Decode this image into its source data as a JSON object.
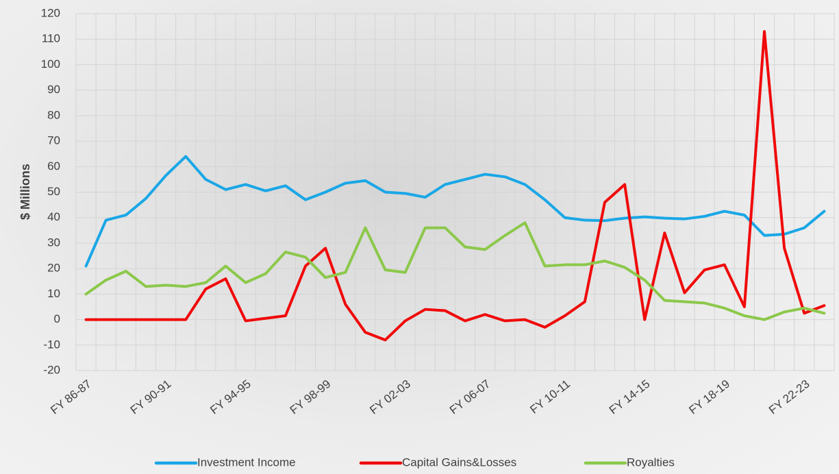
{
  "chart_data": {
    "type": "line",
    "y_label": "$ Millions",
    "categories": [
      "FY 86-87",
      null,
      null,
      null,
      "FY 90-91",
      null,
      null,
      null,
      "FY 94-95",
      null,
      null,
      null,
      "FY 98-99",
      null,
      null,
      null,
      "FY 02-03",
      null,
      null,
      null,
      "FY 06-07",
      null,
      null,
      null,
      "FY 10-11",
      null,
      null,
      null,
      "FY 14-15",
      null,
      null,
      null,
      "FY 18-19",
      null,
      null,
      null,
      "FY 22-23",
      null
    ],
    "series": [
      {
        "name": "Investment Income",
        "color": "#1aa7e6",
        "values": [
          21,
          39,
          41,
          47.5,
          56.5,
          64,
          55,
          51,
          53,
          50.5,
          52.5,
          47,
          50,
          53.5,
          54.5,
          50,
          49.5,
          48,
          53,
          55,
          57,
          56,
          53,
          47,
          40,
          39,
          38.8,
          39.8,
          40.3,
          39.8,
          39.5,
          40.5,
          42.5,
          41,
          33,
          33.5,
          36,
          42.5
        ]
      },
      {
        "name": "Capital Gains&Losses",
        "color": "#f00a0a",
        "values": [
          0,
          0,
          0,
          0,
          0,
          0,
          12,
          16,
          -0.5,
          0.5,
          1.5,
          21,
          28,
          6,
          -5,
          -8,
          -0.5,
          4,
          3.5,
          -0.5,
          2,
          -0.5,
          0,
          -3,
          1.5,
          7,
          46,
          53,
          0,
          34,
          10.5,
          19.5,
          21.5,
          5,
          113,
          28,
          2.5,
          5.5
        ]
      },
      {
        "name": "Royalties",
        "color": "#8cc84b",
        "values": [
          10,
          15.5,
          19,
          13,
          13.5,
          13,
          14.5,
          21,
          14.5,
          18,
          26.5,
          24.5,
          16.5,
          18.5,
          36,
          19.5,
          18.5,
          36,
          36,
          28.5,
          27.5,
          33,
          38,
          21,
          21.5,
          21.5,
          23,
          20.5,
          15.5,
          7.5,
          7,
          6.5,
          4.5,
          1.5,
          0,
          3,
          4.5,
          2.5
        ]
      }
    ],
    "ylim": [
      -20,
      120
    ],
    "yticks": [
      -20,
      -10,
      0,
      10,
      20,
      30,
      40,
      50,
      60,
      70,
      80,
      90,
      100,
      110,
      120
    ],
    "grid": true,
    "legend": "bottom"
  }
}
